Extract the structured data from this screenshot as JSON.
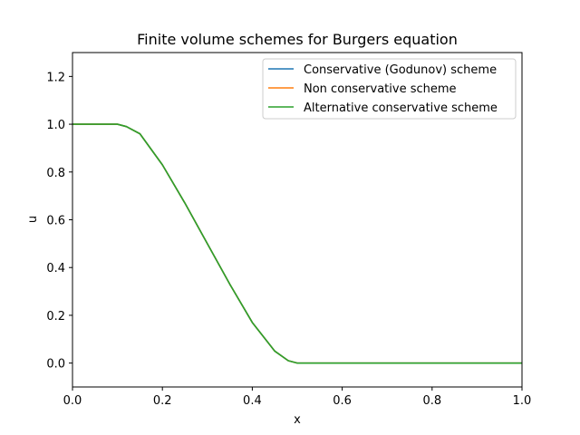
{
  "chart_data": {
    "type": "line",
    "title": "Finite volume schemes for Burgers equation",
    "xlabel": "x",
    "ylabel": "u",
    "xlim": [
      0.0,
      1.0
    ],
    "ylim": [
      -0.1,
      1.3
    ],
    "xticks": [
      "0.0",
      "0.2",
      "0.4",
      "0.6",
      "0.8",
      "1.0"
    ],
    "yticks": [
      "0.0",
      "0.2",
      "0.4",
      "0.6",
      "0.8",
      "1.0",
      "1.2"
    ],
    "grid": false,
    "legend_position": "top-right",
    "x": [
      0.0,
      0.05,
      0.1,
      0.12,
      0.15,
      0.2,
      0.25,
      0.3,
      0.35,
      0.4,
      0.45,
      0.48,
      0.5,
      0.55,
      0.6,
      0.7,
      0.8,
      0.9,
      1.0
    ],
    "series": [
      {
        "name": "Conservative (Godunov) scheme",
        "color": "#1f77b4",
        "values": [
          1.0,
          1.0,
          1.0,
          0.99,
          0.96,
          0.83,
          0.67,
          0.5,
          0.33,
          0.17,
          0.05,
          0.01,
          0.0,
          0.0,
          0.0,
          0.0,
          0.0,
          0.0,
          0.0
        ]
      },
      {
        "name": "Non conservative scheme",
        "color": "#ff7f0e",
        "values": [
          1.0,
          1.0,
          1.0,
          0.99,
          0.96,
          0.83,
          0.67,
          0.5,
          0.33,
          0.17,
          0.05,
          0.01,
          0.0,
          0.0,
          0.0,
          0.0,
          0.0,
          0.0,
          0.0
        ]
      },
      {
        "name": "Alternative conservative scheme",
        "color": "#2ca02c",
        "values": [
          1.0,
          1.0,
          1.0,
          0.99,
          0.96,
          0.83,
          0.67,
          0.5,
          0.33,
          0.17,
          0.05,
          0.01,
          0.0,
          0.0,
          0.0,
          0.0,
          0.0,
          0.0,
          0.0
        ]
      }
    ]
  }
}
